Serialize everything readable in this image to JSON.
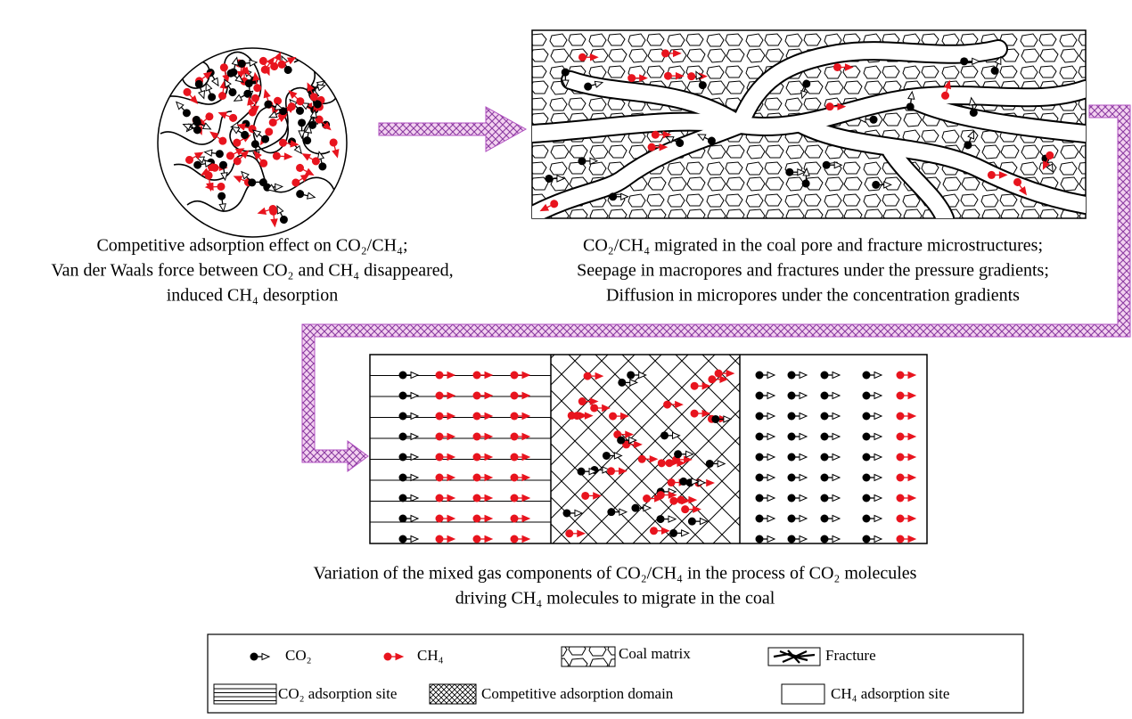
{
  "circle_caption": [
    "Competitive adsorption effect on CO₂/CH₄;",
    "Van der Waals force between CO₂ and CH₄ disappeared,",
    "induced CH₄ desorption"
  ],
  "rect_caption": [
    "CO₂/CH₄ migrated in the coal pore and fracture microstructures;",
    "Seepage in macropores and fractures under the pressure gradients;",
    "Diffusion in micropores under the concentration gradients"
  ],
  "bottom_caption": [
    "Variation of the mixed gas components of CO₂/CH₄ in the process of CO₂ molecules",
    "driving CH₄ molecules to migrate in the coal"
  ],
  "legend": {
    "co2": "CO₂",
    "ch4": "CH₄",
    "coal_matrix": "Coal matrix",
    "fracture": "Fracture",
    "co2_site": "CO₂ adsorption site",
    "competitive": "Competitive adsorption domain",
    "ch4_site": "CH₄ adsorption site"
  }
}
